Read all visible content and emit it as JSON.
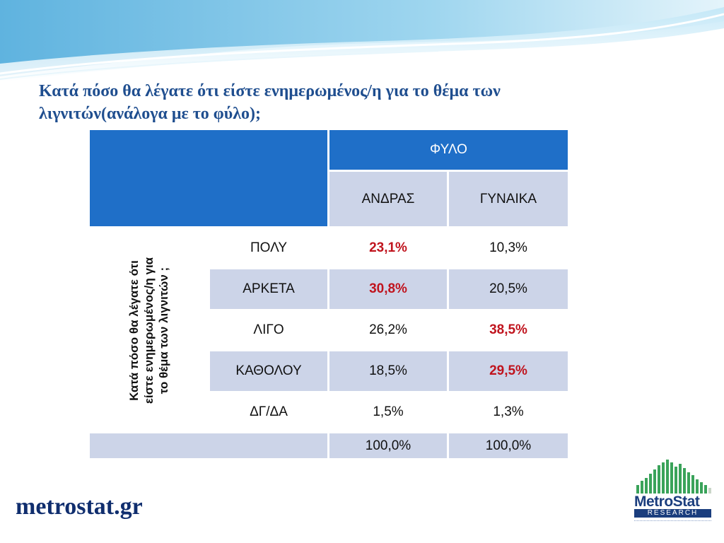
{
  "title": "Κατά πόσο θα λέγατε ότι είστε ενημερωμένος/η για το θέμα των λιγνιτών(ανάλογα με το φύλο);",
  "table": {
    "group_header": "ΦΥΛΟ",
    "columns": [
      "ΑΝΔΡΑΣ",
      "ΓΥΝΑΙΚΑ"
    ],
    "row_header_lines": [
      "Κατά πόσο θα λέγατε ότι",
      "είστε ενημερωμένος/η για",
      "το θέμα των λιγνιτών ;"
    ],
    "rows": [
      {
        "label": "ΠΟΛΥ",
        "values": [
          "23,1%",
          "10,3%"
        ],
        "highlight": [
          true,
          false
        ]
      },
      {
        "label": "ΑΡΚΕΤΑ",
        "values": [
          "30,8%",
          "20,5%"
        ],
        "highlight": [
          true,
          false
        ]
      },
      {
        "label": "ΛΙΓΟ",
        "values": [
          "26,2%",
          "38,5%"
        ],
        "highlight": [
          false,
          true
        ]
      },
      {
        "label": "ΚΑΘΟΛΟΥ",
        "values": [
          "18,5%",
          "29,5%"
        ],
        "highlight": [
          false,
          true
        ]
      },
      {
        "label": "ΔΓ/ΔΑ",
        "values": [
          "1,5%",
          "1,3%"
        ],
        "highlight": [
          false,
          false
        ]
      }
    ],
    "totals": [
      "100,0%",
      "100,0%"
    ]
  },
  "footer": {
    "site": "metrostat.gr"
  },
  "logo": {
    "name": "MetroStat",
    "subtitle": "RESEARCH"
  },
  "colors": {
    "header_blue": "#1f6fc8",
    "band": "#ccd4e8",
    "highlight": "#c0141e",
    "title": "#1f4e8f"
  }
}
